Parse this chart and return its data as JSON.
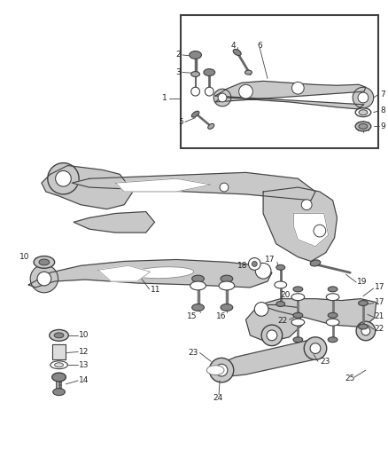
{
  "bg_color": "#ffffff",
  "line_color": "#404040",
  "fill_color": "#d0d0d0",
  "text_color": "#222222",
  "figsize": [
    4.38,
    5.33
  ],
  "dpi": 100
}
